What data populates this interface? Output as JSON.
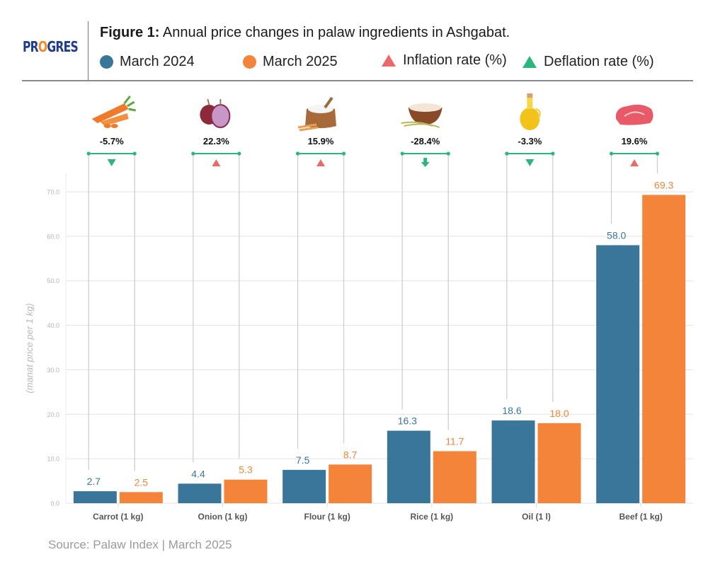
{
  "header": {
    "logo_prefix": "PR",
    "logo_o": "O",
    "logo_suffix": "GRES",
    "title_bold": "Figure 1:",
    "title_rest": " Annual price changes in palaw ingredients in Ashgabat."
  },
  "legend": [
    {
      "label": "March 2024",
      "shape": "circle",
      "color": "#3a7699"
    },
    {
      "label": "March 2025",
      "shape": "circle",
      "color": "#f4843a"
    },
    {
      "label": "Inflation rate (%)",
      "shape": "triangle-up",
      "color": "#e86a6a"
    },
    {
      "label": "Deflation rate (%)",
      "shape": "triangle-up",
      "color": "#2bb67f"
    }
  ],
  "colors": {
    "march2024": "#3a7699",
    "march2025": "#f4843a",
    "inflation": "#e86a6a",
    "deflation": "#2bb67f",
    "grid": "#e3e3e3",
    "axis_text": "#b5b5b5",
    "category_text": "#555555"
  },
  "chart_data": {
    "type": "bar",
    "title": "Figure 1: Annual price changes in palaw ingredients in Ashgabat.",
    "xlabel": "",
    "ylabel": "(manat price per 1 kg)",
    "ylim": [
      0,
      70
    ],
    "yticks": [
      "0.0",
      "10.0",
      "20.0",
      "30.0",
      "40.0",
      "50.0",
      "60.0",
      "70.0"
    ],
    "ytick_values": [
      0,
      10,
      20,
      30,
      40,
      50,
      60,
      70
    ],
    "grid": true,
    "legend_position": "top",
    "categories": [
      "Carrot (1 kg)",
      "Onion (1 kg)",
      "Flour (1 kg)",
      "Rice (1 kg)",
      "Oil (1 l)",
      "Beef (1 kg)"
    ],
    "icons": [
      "carrot-icon",
      "onion-icon",
      "flour-sack-icon",
      "rice-bowl-icon",
      "oil-bottle-icon",
      "beef-steak-icon"
    ],
    "series": [
      {
        "name": "March 2024",
        "values": [
          2.7,
          4.4,
          7.5,
          16.3,
          18.6,
          58.0
        ],
        "labels": [
          "2.7",
          "4.4",
          "7.5",
          "16.3",
          "18.6",
          "58.0"
        ]
      },
      {
        "name": "March 2025",
        "values": [
          2.5,
          5.3,
          8.7,
          11.7,
          18.0,
          69.3
        ],
        "labels": [
          "2.5",
          "5.3",
          "8.7",
          "11.7",
          "18.0",
          "69.3"
        ]
      }
    ],
    "change_pct": [
      -5.7,
      22.3,
      15.9,
      -28.4,
      -3.3,
      19.6
    ],
    "change_labels": [
      "-5.7%",
      "22.3%",
      "15.9%",
      "-28.4%",
      "-3.3%",
      "19.6%"
    ],
    "change_markers": [
      "deflation-triangle",
      "inflation-triangle",
      "inflation-triangle",
      "deflation-arrow",
      "deflation-triangle",
      "inflation-triangle"
    ]
  },
  "footer": {
    "source": "Source: Palaw Index | March 2025"
  }
}
